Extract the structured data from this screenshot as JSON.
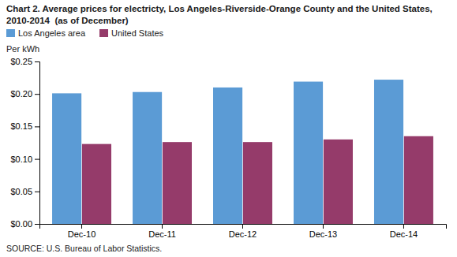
{
  "chart_data": {
    "type": "bar",
    "title": "Chart 2. Average prices for electricty, Los Angeles-Riverside-Orange County and the United States, 2010-2014  (as of December)",
    "ylabel": "Per kWh",
    "source": "SOURCE: U.S. Bureau of Labor Statistics.",
    "categories": [
      "Dec-10",
      "Dec-11",
      "Dec-12",
      "Dec-13",
      "Dec-14"
    ],
    "series": [
      {
        "name": "Los Angeles area",
        "color": "#5B9BD5",
        "values": [
          0.201,
          0.203,
          0.21,
          0.219,
          0.222
        ]
      },
      {
        "name": "United States",
        "color": "#953B6A",
        "values": [
          0.123,
          0.126,
          0.126,
          0.13,
          0.135
        ]
      }
    ],
    "ylim": [
      0,
      0.25
    ],
    "yticks": [
      {
        "value": 0.0,
        "label": "$0.00"
      },
      {
        "value": 0.05,
        "label": "$0.05"
      },
      {
        "value": 0.1,
        "label": "$0.10"
      },
      {
        "value": 0.15,
        "label": "$0.15"
      },
      {
        "value": 0.2,
        "label": "$0.20"
      },
      {
        "value": 0.25,
        "label": "$0.25"
      }
    ],
    "legend": "top-left",
    "grid": false
  }
}
